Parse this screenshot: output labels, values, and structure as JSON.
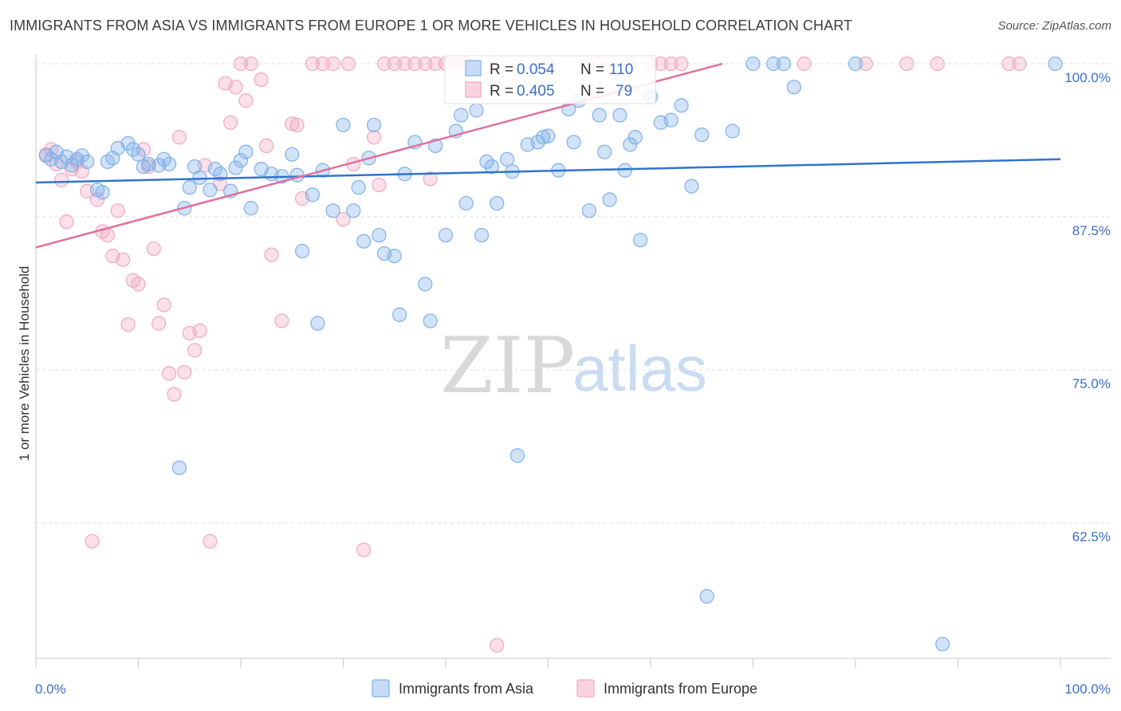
{
  "title": "IMMIGRANTS FROM ASIA VS IMMIGRANTS FROM EUROPE 1 OR MORE VEHICLES IN HOUSEHOLD CORRELATION CHART",
  "source": "Source: ZipAtlas.com",
  "watermark": {
    "zip": "ZIP",
    "atlas": "atlas"
  },
  "stats": {
    "r_label": "R =",
    "n_label": "N =",
    "asia": {
      "r": "0.054",
      "n": "110"
    },
    "europe": {
      "r": "0.405",
      "n": "79"
    }
  },
  "chart_data": {
    "type": "scatter",
    "xlabel": "",
    "ylabel": "1 or more Vehicles in Household",
    "xlim": [
      0,
      100
    ],
    "ylim": [
      50,
      101.5
    ],
    "x_tick_labels": [
      "0.0%",
      "100.0%"
    ],
    "y_ticks": [
      100,
      87.5,
      75,
      62.5
    ],
    "y_tick_labels": [
      "100.0%",
      "87.5%",
      "75.0%",
      "62.5%"
    ],
    "legend_position": "bottom-center",
    "colors": {
      "asia": "#7fb0ea",
      "asia_line": "#2f74d0",
      "europe": "#f2a7c0",
      "europe_line": "#e0709a"
    },
    "series": [
      {
        "name": "Immigrants from Asia",
        "trend": {
          "x": [
            0,
            100
          ],
          "y": [
            90.3,
            92.2
          ]
        },
        "points": [
          [
            1,
            92.5
          ],
          [
            1.5,
            92.2
          ],
          [
            2,
            92.8
          ],
          [
            2.5,
            92
          ],
          [
            3,
            92.4
          ],
          [
            3.5,
            91.7
          ],
          [
            4,
            92.2
          ],
          [
            4.5,
            92.5
          ],
          [
            5,
            92
          ],
          [
            6,
            89.7
          ],
          [
            6.5,
            89.5
          ],
          [
            7,
            92
          ],
          [
            7.5,
            92.3
          ],
          [
            8,
            93.1
          ],
          [
            9,
            93.5
          ],
          [
            9.5,
            93
          ],
          [
            10,
            92.6
          ],
          [
            10.5,
            91.6
          ],
          [
            11,
            91.8
          ],
          [
            12,
            91.7
          ],
          [
            12.5,
            92.2
          ],
          [
            13,
            91.8
          ],
          [
            14,
            67
          ],
          [
            14.5,
            88.2
          ],
          [
            15,
            89.9
          ],
          [
            15.5,
            91.6
          ],
          [
            16,
            90.7
          ],
          [
            17,
            89.7
          ],
          [
            17.5,
            91.4
          ],
          [
            18,
            91
          ],
          [
            19,
            89.6
          ],
          [
            19.5,
            91.5
          ],
          [
            20,
            92.1
          ],
          [
            20.5,
            92.8
          ],
          [
            21,
            88.2
          ],
          [
            22,
            91.4
          ],
          [
            23,
            91
          ],
          [
            24,
            90.8
          ],
          [
            25,
            92.6
          ],
          [
            25.5,
            90.9
          ],
          [
            26,
            84.7
          ],
          [
            27,
            89.3
          ],
          [
            27.5,
            78.8
          ],
          [
            28,
            91.3
          ],
          [
            29,
            88
          ],
          [
            30,
            95
          ],
          [
            31,
            88
          ],
          [
            31.5,
            89.9
          ],
          [
            32,
            85.5
          ],
          [
            32.5,
            92.3
          ],
          [
            33,
            95
          ],
          [
            33.5,
            86
          ],
          [
            34,
            84.5
          ],
          [
            35,
            84.3
          ],
          [
            35.5,
            79.5
          ],
          [
            36,
            91
          ],
          [
            37,
            93.6
          ],
          [
            38,
            82
          ],
          [
            38.5,
            79
          ],
          [
            39,
            93.3
          ],
          [
            40,
            86
          ],
          [
            41,
            94.5
          ],
          [
            41.5,
            95.8
          ],
          [
            42,
            88.6
          ],
          [
            43,
            96.2
          ],
          [
            43.5,
            86
          ],
          [
            44,
            92
          ],
          [
            44.5,
            91.6
          ],
          [
            45,
            88.6
          ],
          [
            46,
            92.2
          ],
          [
            46.5,
            91.2
          ],
          [
            47,
            68
          ],
          [
            48,
            93.4
          ],
          [
            49,
            93.6
          ],
          [
            49.5,
            94
          ],
          [
            50,
            94.1
          ],
          [
            51,
            91.3
          ],
          [
            52,
            96.3
          ],
          [
            52.5,
            93.6
          ],
          [
            53,
            97
          ],
          [
            54,
            88
          ],
          [
            55,
            95.8
          ],
          [
            55.5,
            92.8
          ],
          [
            56,
            88.9
          ],
          [
            57,
            95.8
          ],
          [
            57.5,
            91.3
          ],
          [
            58,
            93.4
          ],
          [
            58.5,
            94
          ],
          [
            59,
            85.6
          ],
          [
            60,
            97.3
          ],
          [
            61,
            95.2
          ],
          [
            62,
            95.4
          ],
          [
            63,
            96.6
          ],
          [
            64,
            90
          ],
          [
            65,
            94.2
          ],
          [
            65.5,
            56.5
          ],
          [
            68,
            94.5
          ],
          [
            70,
            100
          ],
          [
            72,
            100
          ],
          [
            73,
            100
          ],
          [
            74,
            98.1
          ],
          [
            80,
            100
          ],
          [
            88.5,
            52.6
          ],
          [
            99.5,
            100
          ]
        ]
      },
      {
        "name": "Immigrants from Europe",
        "trend": {
          "x": [
            0,
            67
          ],
          "y": [
            85,
            100
          ]
        },
        "points": [
          [
            1,
            92.6
          ],
          [
            1.5,
            93
          ],
          [
            2,
            91.8
          ],
          [
            2.5,
            90.5
          ],
          [
            3,
            87.1
          ],
          [
            3.5,
            91.4
          ],
          [
            4,
            92
          ],
          [
            4.5,
            91.2
          ],
          [
            5,
            89.6
          ],
          [
            5.5,
            61
          ],
          [
            6,
            88.9
          ],
          [
            6.5,
            86.3
          ],
          [
            7,
            86
          ],
          [
            7.5,
            84.3
          ],
          [
            8,
            88
          ],
          [
            8.5,
            84
          ],
          [
            9,
            78.7
          ],
          [
            9.5,
            82.3
          ],
          [
            10,
            82
          ],
          [
            10.5,
            93
          ],
          [
            11,
            91.6
          ],
          [
            11.5,
            84.9
          ],
          [
            12,
            78.8
          ],
          [
            12.5,
            80.3
          ],
          [
            13,
            74.7
          ],
          [
            13.5,
            73
          ],
          [
            14,
            94
          ],
          [
            14.5,
            74.8
          ],
          [
            15,
            78
          ],
          [
            15.5,
            76.6
          ],
          [
            16,
            78.2
          ],
          [
            16.5,
            91.7
          ],
          [
            17,
            61
          ],
          [
            18,
            90.2
          ],
          [
            18.5,
            98.4
          ],
          [
            19,
            95.2
          ],
          [
            19.5,
            98.1
          ],
          [
            20,
            100
          ],
          [
            20.5,
            97
          ],
          [
            21,
            100
          ],
          [
            22,
            98.7
          ],
          [
            22.5,
            93.3
          ],
          [
            23,
            84.4
          ],
          [
            24,
            79
          ],
          [
            25,
            95.1
          ],
          [
            25.5,
            95
          ],
          [
            26,
            89
          ],
          [
            27,
            100
          ],
          [
            28,
            100
          ],
          [
            29,
            100
          ],
          [
            30,
            87.3
          ],
          [
            30.5,
            100
          ],
          [
            31,
            91.8
          ],
          [
            32,
            60.3
          ],
          [
            33,
            94
          ],
          [
            33.5,
            90.1
          ],
          [
            34,
            100
          ],
          [
            35,
            100
          ],
          [
            36,
            100
          ],
          [
            37,
            100
          ],
          [
            38,
            100
          ],
          [
            38.5,
            90.6
          ],
          [
            39,
            100
          ],
          [
            40,
            100
          ],
          [
            41,
            100
          ],
          [
            42,
            100
          ],
          [
            45,
            52.5
          ],
          [
            50,
            100
          ],
          [
            55,
            100
          ],
          [
            58,
            100
          ],
          [
            60,
            100
          ],
          [
            61,
            100
          ],
          [
            62,
            100
          ],
          [
            63,
            100
          ],
          [
            75,
            100
          ],
          [
            81,
            100
          ],
          [
            85,
            100
          ],
          [
            88,
            100
          ],
          [
            95,
            100
          ],
          [
            96,
            100
          ]
        ]
      }
    ],
    "legend": [
      "Immigrants from Asia",
      "Immigrants from Europe"
    ]
  }
}
